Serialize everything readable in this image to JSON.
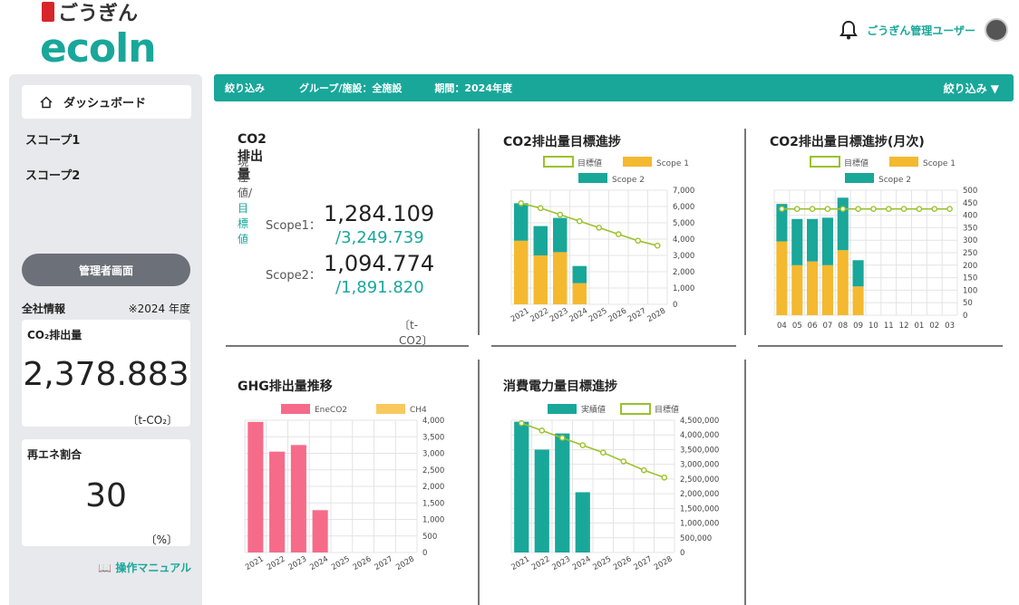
{
  "brand": {
    "ja": "ごうぎん",
    "en": "ecoln"
  },
  "header": {
    "user": "ごうぎん管理ユーザー",
    "bell_icon": "bell-icon"
  },
  "sidebar": {
    "items": [
      {
        "label": "ダッシュボード",
        "icon": "home-icon"
      },
      {
        "label": "スコープ1"
      },
      {
        "label": "スコープ2"
      }
    ],
    "admin_button": "管理者画面",
    "overall_label": "全社情報",
    "overall_year": "※2024 年度",
    "co2_card": {
      "title": "CO₂排出量",
      "value": "2,378.883",
      "unit": "〔t-CO₂〕"
    },
    "renew_card": {
      "title": "再エネ割合",
      "value": "30",
      "unit": "〔%〕"
    },
    "manual": "操作マニュアル"
  },
  "filter": {
    "label": "絞り込み",
    "group": "グループ/施設：全施設",
    "period": "期間：2024年度",
    "toggle": "絞り込み ▼"
  },
  "co2_panel": {
    "title": "CO2排出量",
    "sub_current": "現在値/",
    "sub_target": "目標値",
    "scope1_label": "Scope1：",
    "scope1_value": "1,284.109",
    "scope1_target": "/3,249.739",
    "scope2_label": "Scope2：",
    "scope2_value": "1,094.774",
    "scope2_target": "/1,891.820",
    "unit": "〔t-CO2〕"
  },
  "chart_data": [
    {
      "id": "co2_target",
      "type": "bar",
      "title": "CO2排出量目標進捗",
      "categories": [
        "2021",
        "2022",
        "2023",
        "2024",
        "2025",
        "2026",
        "2027",
        "2028"
      ],
      "stacked": true,
      "series": [
        {
          "name": "Scope 1",
          "type": "bar",
          "color": "#f4b92f",
          "values": [
            3900,
            3000,
            3200,
            1300,
            null,
            null,
            null,
            null
          ]
        },
        {
          "name": "Scope 2",
          "type": "bar",
          "color": "#19a79a",
          "values": [
            2300,
            1800,
            2100,
            1050,
            null,
            null,
            null,
            null
          ]
        },
        {
          "name": "目標値",
          "type": "line",
          "color": "#9ac22b",
          "values": [
            6200,
            5900,
            5500,
            5100,
            4700,
            4300,
            3900,
            3600
          ]
        }
      ],
      "ylim": [
        0,
        7000
      ],
      "yticks": [
        "0",
        "1,000",
        "2,000",
        "3,000",
        "4,000",
        "5,000",
        "6,000",
        "7,000"
      ],
      "legend": "top"
    },
    {
      "id": "co2_monthly",
      "type": "bar",
      "title": "CO2排出量目標進捗(月次)",
      "categories": [
        "04",
        "05",
        "06",
        "07",
        "08",
        "09",
        "10",
        "11",
        "12",
        "01",
        "02",
        "03"
      ],
      "stacked": true,
      "series": [
        {
          "name": "Scope 1",
          "type": "bar",
          "color": "#f4b92f",
          "values": [
            295,
            200,
            215,
            200,
            260,
            115,
            null,
            null,
            null,
            null,
            null,
            null
          ]
        },
        {
          "name": "Scope 2",
          "type": "bar",
          "color": "#19a79a",
          "values": [
            150,
            185,
            170,
            190,
            210,
            105,
            null,
            null,
            null,
            null,
            null,
            null
          ]
        },
        {
          "name": "目標値",
          "type": "line",
          "color": "#9ac22b",
          "values": [
            425,
            425,
            425,
            425,
            425,
            425,
            425,
            425,
            425,
            425,
            425,
            425
          ]
        }
      ],
      "ylim": [
        0,
        500
      ],
      "yticks": [
        "0",
        "50",
        "100",
        "150",
        "200",
        "250",
        "300",
        "350",
        "400",
        "450",
        "500"
      ],
      "legend": "top"
    },
    {
      "id": "ghg",
      "type": "bar",
      "title": "GHG排出量推移",
      "categories": [
        "2021",
        "2022",
        "2023",
        "2024",
        "2025",
        "2026",
        "2027",
        "2028"
      ],
      "stacked": true,
      "series": [
        {
          "name": "EneCO2",
          "type": "bar",
          "color": "#f66b8a",
          "values": [
            3950,
            3050,
            3250,
            1280,
            null,
            null,
            null,
            null
          ]
        },
        {
          "name": "CH4",
          "type": "bar",
          "color": "#f9c95e",
          "values": [
            0,
            0,
            0,
            0,
            null,
            null,
            null,
            null
          ]
        }
      ],
      "ylim": [
        0,
        4000
      ],
      "yticks": [
        "0",
        "500",
        "1,000",
        "1,500",
        "2,000",
        "2,500",
        "3,000",
        "3,500",
        "4,000"
      ],
      "legend": "top"
    },
    {
      "id": "power",
      "type": "bar",
      "title": "消費電力量目標進捗",
      "categories": [
        "2021",
        "2022",
        "2023",
        "2024",
        "2025",
        "2026",
        "2027",
        "2028"
      ],
      "stacked": false,
      "series": [
        {
          "name": "実績値",
          "type": "bar",
          "color": "#19a79a",
          "values": [
            4450000,
            3500000,
            4050000,
            2050000,
            null,
            null,
            null,
            null
          ]
        },
        {
          "name": "目標値",
          "type": "line",
          "color": "#9ac22b",
          "values": [
            4400000,
            4150000,
            3900000,
            3650000,
            3400000,
            3100000,
            2800000,
            2550000
          ]
        }
      ],
      "ylim": [
        0,
        4500000
      ],
      "yticks": [
        "0",
        "500,000",
        "1,000,000",
        "1,500,000",
        "2,000,000",
        "2,500,000",
        "3,000,000",
        "3,500,000",
        "4,000,000",
        "4,500,000"
      ],
      "legend": "top"
    }
  ]
}
